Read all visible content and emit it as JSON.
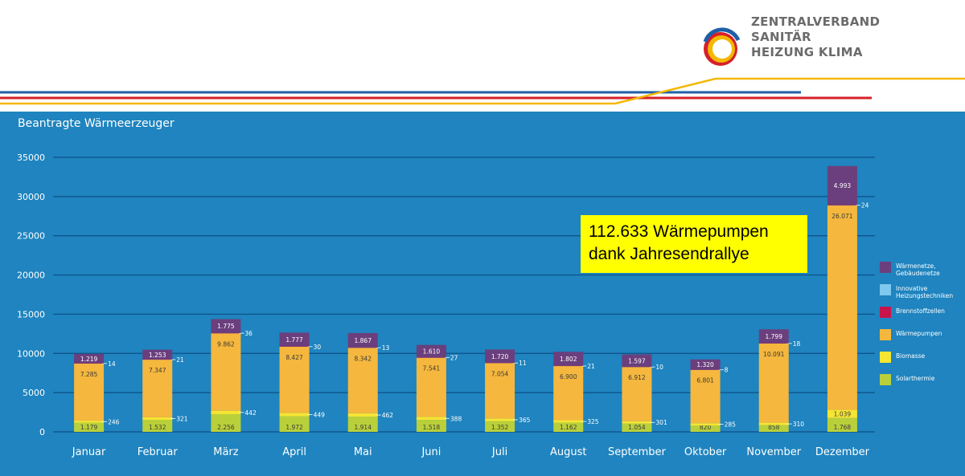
{
  "header": {
    "logo_lines": [
      "ZENTRALVERBAND",
      "SANITÄR",
      "HEIZUNG KLIMA"
    ],
    "colors": {
      "blue": "#1f5fa8",
      "red": "#d5202a",
      "yellow": "#f3b800"
    }
  },
  "callout": {
    "line1": "112.633 Wärmepumpen",
    "line2": "dank Jahresendrallye",
    "background": "#ffff00"
  },
  "legend": [
    {
      "name": "Wärmenetze, Gebäudenetze",
      "color": "#6b3f7d"
    },
    {
      "name": "Innovative Heizungstechniken",
      "color": "#7fc8ee"
    },
    {
      "name": "Brennstoffzellen",
      "color": "#c8144b"
    },
    {
      "name": "Wärmepumpen",
      "color": "#f5b73d"
    },
    {
      "name": "Biomasse",
      "color": "#f6e531"
    },
    {
      "name": "Solarthermie",
      "color": "#b9d03a"
    }
  ],
  "chart_data": {
    "type": "bar",
    "stacked": true,
    "title": "Beantragte Wärmeerzeuger",
    "categories": [
      "Januar",
      "Februar",
      "März",
      "April",
      "Mai",
      "Juni",
      "Juli",
      "August",
      "September",
      "Oktober",
      "November",
      "Dezember"
    ],
    "ylim": [
      0,
      35000
    ],
    "yticks": [
      "0",
      "5000",
      "10000",
      "15000",
      "20000",
      "25000",
      "30000",
      "35000"
    ],
    "grid": true,
    "legend_position": "right",
    "background": "#1f84bf",
    "series": [
      {
        "name": "Solarthermie",
        "color": "#b9d03a",
        "values": [
          1179,
          1532,
          2256,
          1972,
          1914,
          1518,
          1352,
          1162,
          1054,
          820,
          858,
          1768
        ],
        "labels": [
          "1.179",
          "1.532",
          "2.256",
          "1.972",
          "1.914",
          "1.518",
          "1.352",
          "1.162",
          "1.054",
          "820",
          "858",
          "1.768"
        ],
        "label_pos": "inside"
      },
      {
        "name": "Biomasse",
        "color": "#f6e531",
        "values": [
          246,
          321,
          442,
          449,
          462,
          388,
          365,
          325,
          301,
          285,
          310,
          1039
        ],
        "labels": [
          "246",
          "321",
          "442",
          "449",
          "462",
          "388",
          "365",
          "325",
          "301",
          "285",
          "310",
          "1.039"
        ],
        "label_pos": [
          "side",
          "side",
          "side",
          "side",
          "side",
          "side",
          "side",
          "side",
          "side",
          "side",
          "side",
          "inside"
        ]
      },
      {
        "name": "Wärmepumpen",
        "color": "#f5b73d",
        "values": [
          7285,
          7347,
          9862,
          8427,
          8342,
          7541,
          7054,
          6900,
          6912,
          6801,
          10091,
          26071
        ],
        "labels": [
          "7.285",
          "7.347",
          "9.862",
          "8.427",
          "8.342",
          "7.541",
          "7.054",
          "6.900",
          "6.912",
          "6.801",
          "10.091",
          "26.071"
        ],
        "label_pos": "inside-top"
      },
      {
        "name": "Brennstoffzellen",
        "color": "#c8144b",
        "values": [
          14,
          21,
          36,
          30,
          13,
          27,
          11,
          21,
          10,
          8,
          18,
          24
        ],
        "labels": [
          "14",
          "21",
          "36",
          "30",
          "13",
          "27",
          "11",
          "21",
          "10",
          "8",
          "18",
          "24"
        ],
        "label_pos": "side"
      },
      {
        "name": "Wärmenetze, Gebäudenetze",
        "color": "#6b3f7d",
        "values": [
          1219,
          1253,
          1775,
          1777,
          1867,
          1610,
          1720,
          1802,
          1597,
          1320,
          1799,
          4993
        ],
        "labels": [
          "1.219",
          "1.253",
          "1.775",
          "1.777",
          "1.867",
          "1.610",
          "1.720",
          "1.802",
          "1.597",
          "1.320",
          "1.799",
          "4.993"
        ],
        "label_pos": "inside"
      }
    ]
  }
}
